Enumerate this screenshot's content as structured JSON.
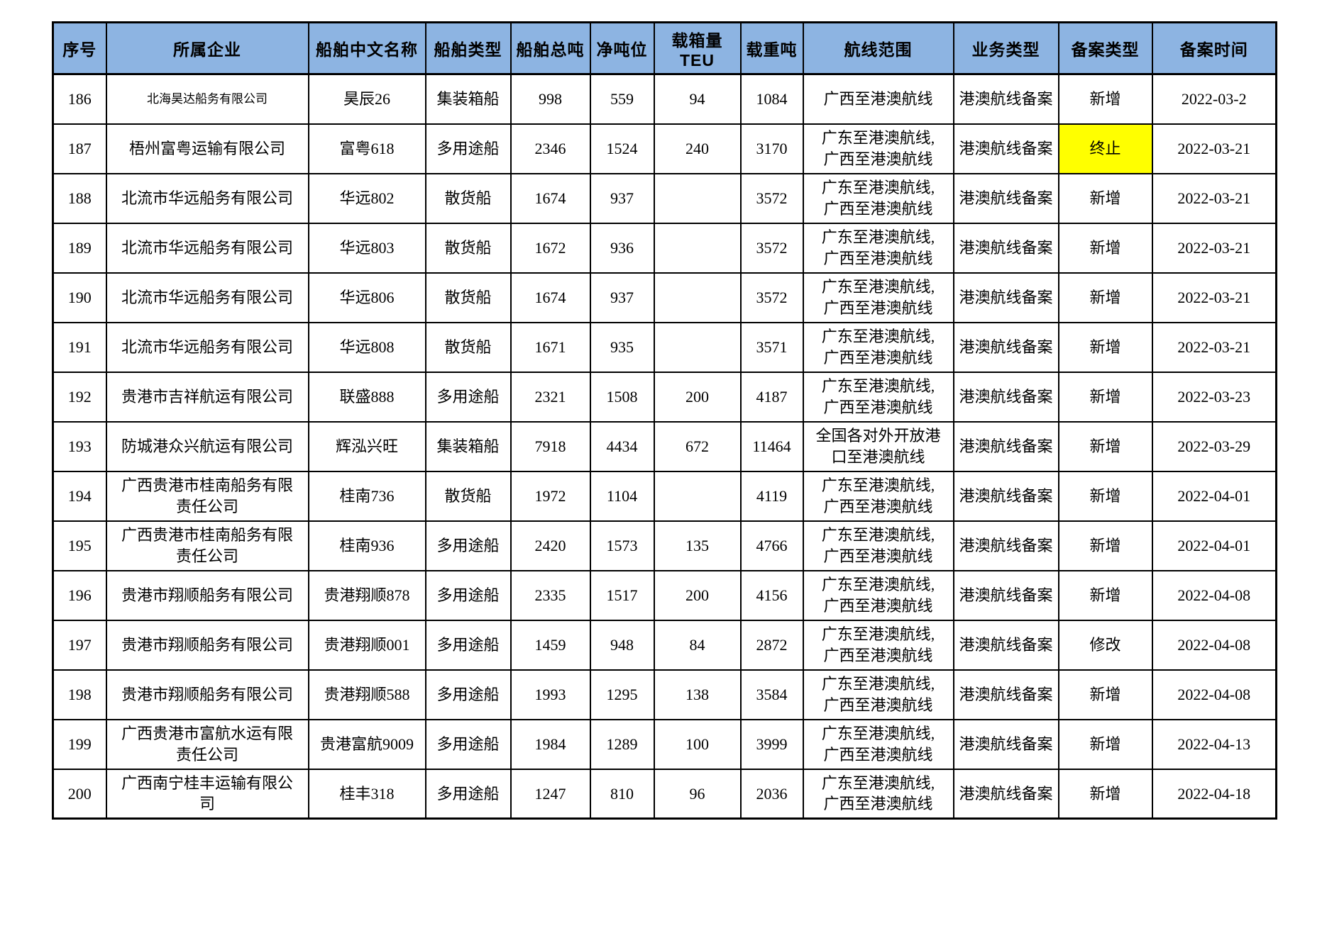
{
  "page": {
    "background_color": "#ffffff",
    "text_color": "#000000"
  },
  "table": {
    "header_bg_color": "#8db4e2",
    "highlight_color": "#ffff00",
    "border_color": "#000000",
    "columns": [
      {
        "key": "seq",
        "label": "序号"
      },
      {
        "key": "company",
        "label": "所属企业"
      },
      {
        "key": "ship_name",
        "label": "船舶中文名称"
      },
      {
        "key": "ship_type",
        "label": "船舶类型"
      },
      {
        "key": "gross_tonnage",
        "label": "船舶总吨"
      },
      {
        "key": "net_tonnage",
        "label": "净吨位"
      },
      {
        "key": "teu",
        "label": "载箱量TEU"
      },
      {
        "key": "deadweight",
        "label": "载重吨"
      },
      {
        "key": "route",
        "label": "航线范围"
      },
      {
        "key": "business_type",
        "label": "业务类型"
      },
      {
        "key": "filing_type",
        "label": "备案类型"
      },
      {
        "key": "filing_date",
        "label": "备案时间"
      }
    ],
    "rows": [
      {
        "seq": "186",
        "company": "北海昊达船务有限公司",
        "company_small": true,
        "ship_name": "昊辰26",
        "ship_type": "集装箱船",
        "gross_tonnage": "998",
        "net_tonnage": "559",
        "teu": "94",
        "deadweight": "1084",
        "route": "广西至港澳航线",
        "business_type": "港澳航线备案",
        "filing_type": "新增",
        "filing_type_highlight": false,
        "filing_date": "2022-03-2"
      },
      {
        "seq": "187",
        "company": "梧州富粤运输有限公司",
        "company_small": false,
        "ship_name": "富粤618",
        "ship_type": "多用途船",
        "gross_tonnage": "2346",
        "net_tonnage": "1524",
        "teu": "240",
        "deadweight": "3170",
        "route": "广东至港澳航线,\n广西至港澳航线",
        "business_type": "港澳航线备案",
        "filing_type": "终止",
        "filing_type_highlight": true,
        "filing_date": "2022-03-21"
      },
      {
        "seq": "188",
        "company": "北流市华远船务有限公司",
        "company_small": false,
        "ship_name": "华远802",
        "ship_type": "散货船",
        "gross_tonnage": "1674",
        "net_tonnage": "937",
        "teu": "",
        "deadweight": "3572",
        "route": "广东至港澳航线,\n广西至港澳航线",
        "business_type": "港澳航线备案",
        "filing_type": "新增",
        "filing_type_highlight": false,
        "filing_date": "2022-03-21"
      },
      {
        "seq": "189",
        "company": "北流市华远船务有限公司",
        "company_small": false,
        "ship_name": "华远803",
        "ship_type": "散货船",
        "gross_tonnage": "1672",
        "net_tonnage": "936",
        "teu": "",
        "deadweight": "3572",
        "route": "广东至港澳航线,\n广西至港澳航线",
        "business_type": "港澳航线备案",
        "filing_type": "新增",
        "filing_type_highlight": false,
        "filing_date": "2022-03-21"
      },
      {
        "seq": "190",
        "company": "北流市华远船务有限公司",
        "company_small": false,
        "ship_name": "华远806",
        "ship_type": "散货船",
        "gross_tonnage": "1674",
        "net_tonnage": "937",
        "teu": "",
        "deadweight": "3572",
        "route": "广东至港澳航线,\n广西至港澳航线",
        "business_type": "港澳航线备案",
        "filing_type": "新增",
        "filing_type_highlight": false,
        "filing_date": "2022-03-21"
      },
      {
        "seq": "191",
        "company": "北流市华远船务有限公司",
        "company_small": false,
        "ship_name": "华远808",
        "ship_type": "散货船",
        "gross_tonnage": "1671",
        "net_tonnage": "935",
        "teu": "",
        "deadweight": "3571",
        "route": "广东至港澳航线,\n广西至港澳航线",
        "business_type": "港澳航线备案",
        "filing_type": "新增",
        "filing_type_highlight": false,
        "filing_date": "2022-03-21"
      },
      {
        "seq": "192",
        "company": "贵港市吉祥航运有限公司",
        "company_small": false,
        "ship_name": "联盛888",
        "ship_type": "多用途船",
        "gross_tonnage": "2321",
        "net_tonnage": "1508",
        "teu": "200",
        "deadweight": "4187",
        "route": "广东至港澳航线,\n广西至港澳航线",
        "business_type": "港澳航线备案",
        "filing_type": "新增",
        "filing_type_highlight": false,
        "filing_date": "2022-03-23"
      },
      {
        "seq": "193",
        "company": "防城港众兴航运有限公司",
        "company_small": false,
        "ship_name": "辉泓兴旺",
        "ship_type": "集装箱船",
        "gross_tonnage": "7918",
        "net_tonnage": "4434",
        "teu": "672",
        "deadweight": "11464",
        "route": "全国各对外开放港\n口至港澳航线",
        "business_type": "港澳航线备案",
        "filing_type": "新增",
        "filing_type_highlight": false,
        "filing_date": "2022-03-29"
      },
      {
        "seq": "194",
        "company": "广西贵港市桂南船务有限\n责任公司",
        "company_small": false,
        "ship_name": "桂南736",
        "ship_type": "散货船",
        "gross_tonnage": "1972",
        "net_tonnage": "1104",
        "teu": "",
        "deadweight": "4119",
        "route": "广东至港澳航线,\n广西至港澳航线",
        "business_type": "港澳航线备案",
        "filing_type": "新增",
        "filing_type_highlight": false,
        "filing_date": "2022-04-01"
      },
      {
        "seq": "195",
        "company": "广西贵港市桂南船务有限\n责任公司",
        "company_small": false,
        "ship_name": "桂南936",
        "ship_type": "多用途船",
        "gross_tonnage": "2420",
        "net_tonnage": "1573",
        "teu": "135",
        "deadweight": "4766",
        "route": "广东至港澳航线,\n广西至港澳航线",
        "business_type": "港澳航线备案",
        "filing_type": "新增",
        "filing_type_highlight": false,
        "filing_date": "2022-04-01"
      },
      {
        "seq": "196",
        "company": "贵港市翔顺船务有限公司",
        "company_small": false,
        "ship_name": "贵港翔顺878",
        "ship_type": "多用途船",
        "gross_tonnage": "2335",
        "net_tonnage": "1517",
        "teu": "200",
        "deadweight": "4156",
        "route": "广东至港澳航线,\n广西至港澳航线",
        "business_type": "港澳航线备案",
        "filing_type": "新增",
        "filing_type_highlight": false,
        "filing_date": "2022-04-08"
      },
      {
        "seq": "197",
        "company": "贵港市翔顺船务有限公司",
        "company_small": false,
        "ship_name": "贵港翔顺001",
        "ship_type": "多用途船",
        "gross_tonnage": "1459",
        "net_tonnage": "948",
        "teu": "84",
        "deadweight": "2872",
        "route": "广东至港澳航线,\n广西至港澳航线",
        "business_type": "港澳航线备案",
        "filing_type": "修改",
        "filing_type_highlight": false,
        "filing_date": "2022-04-08"
      },
      {
        "seq": "198",
        "company": "贵港市翔顺船务有限公司",
        "company_small": false,
        "ship_name": "贵港翔顺588",
        "ship_type": "多用途船",
        "gross_tonnage": "1993",
        "net_tonnage": "1295",
        "teu": "138",
        "deadweight": "3584",
        "route": "广东至港澳航线,\n广西至港澳航线",
        "business_type": "港澳航线备案",
        "filing_type": "新增",
        "filing_type_highlight": false,
        "filing_date": "2022-04-08"
      },
      {
        "seq": "199",
        "company": "广西贵港市富航水运有限\n责任公司",
        "company_small": false,
        "ship_name": "贵港富航9009",
        "ship_type": "多用途船",
        "gross_tonnage": "1984",
        "net_tonnage": "1289",
        "teu": "100",
        "deadweight": "3999",
        "route": "广东至港澳航线,\n广西至港澳航线",
        "business_type": "港澳航线备案",
        "filing_type": "新增",
        "filing_type_highlight": false,
        "filing_date": "2022-04-13"
      },
      {
        "seq": "200",
        "company": "广西南宁桂丰运输有限公\n司",
        "company_small": false,
        "ship_name": "桂丰318",
        "ship_type": "多用途船",
        "gross_tonnage": "1247",
        "net_tonnage": "810",
        "teu": "96",
        "deadweight": "2036",
        "route": "广东至港澳航线,\n广西至港澳航线",
        "business_type": "港澳航线备案",
        "filing_type": "新增",
        "filing_type_highlight": false,
        "filing_date": "2022-04-18"
      }
    ]
  }
}
